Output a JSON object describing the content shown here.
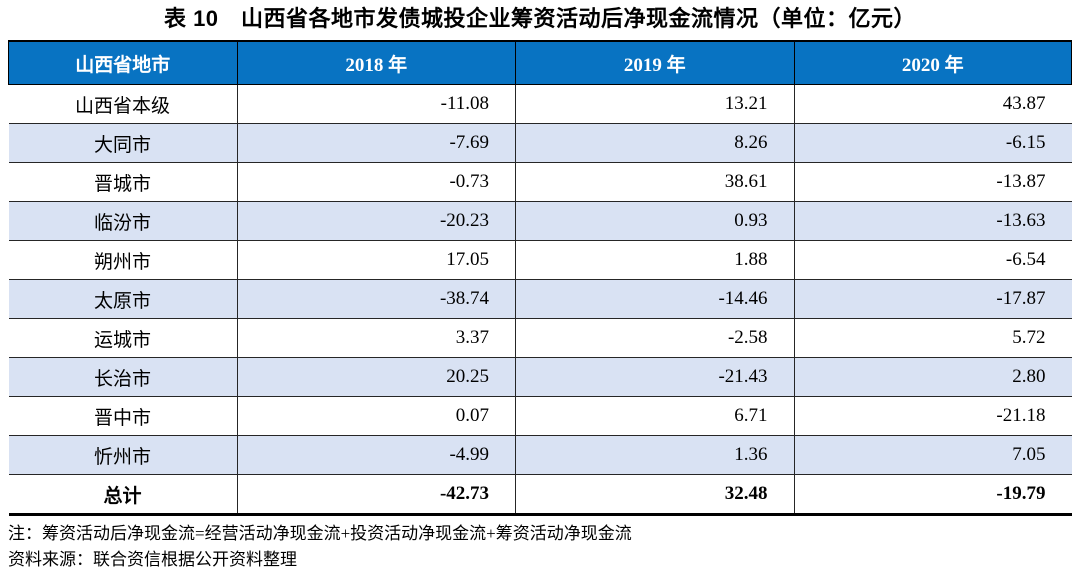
{
  "page": {
    "title": "表 10　山西省各地市发债城投企业筹资活动后净现金流情况（单位：亿元）"
  },
  "table": {
    "columns": {
      "region": "山西省地市",
      "y2018": "2018 年",
      "y2019": "2019 年",
      "y2020": "2020 年"
    },
    "rows": [
      {
        "region": "山西省本级",
        "y2018": "-11.08",
        "y2019": "13.21",
        "y2020": "43.87"
      },
      {
        "region": "大同市",
        "y2018": "-7.69",
        "y2019": "8.26",
        "y2020": "-6.15"
      },
      {
        "region": "晋城市",
        "y2018": "-0.73",
        "y2019": "38.61",
        "y2020": "-13.87"
      },
      {
        "region": "临汾市",
        "y2018": "-20.23",
        "y2019": "0.93",
        "y2020": "-13.63"
      },
      {
        "region": "朔州市",
        "y2018": "17.05",
        "y2019": "1.88",
        "y2020": "-6.54"
      },
      {
        "region": "太原市",
        "y2018": "-38.74",
        "y2019": "-14.46",
        "y2020": "-17.87"
      },
      {
        "region": "运城市",
        "y2018": "3.37",
        "y2019": "-2.58",
        "y2020": "5.72"
      },
      {
        "region": "长治市",
        "y2018": "20.25",
        "y2019": "-21.43",
        "y2020": "2.80"
      },
      {
        "region": "晋中市",
        "y2018": "0.07",
        "y2019": "6.71",
        "y2020": "-21.18"
      },
      {
        "region": "忻州市",
        "y2018": "-4.99",
        "y2019": "1.36",
        "y2020": "7.05"
      }
    ],
    "total_row": {
      "region": "总计",
      "y2018": "-42.73",
      "y2019": "32.48",
      "y2020": "-19.79"
    }
  },
  "notes": {
    "note": "注：筹资活动后净现金流=经营活动净现金流+投资活动净现金流+筹资活动净现金流",
    "source": "资料来源：联合资信根据公开资料整理"
  },
  "colors": {
    "header_bg": "#0873C2",
    "header_text": "#ffffff",
    "alt_row_bg": "#D9E2F3",
    "border": "#262626"
  }
}
